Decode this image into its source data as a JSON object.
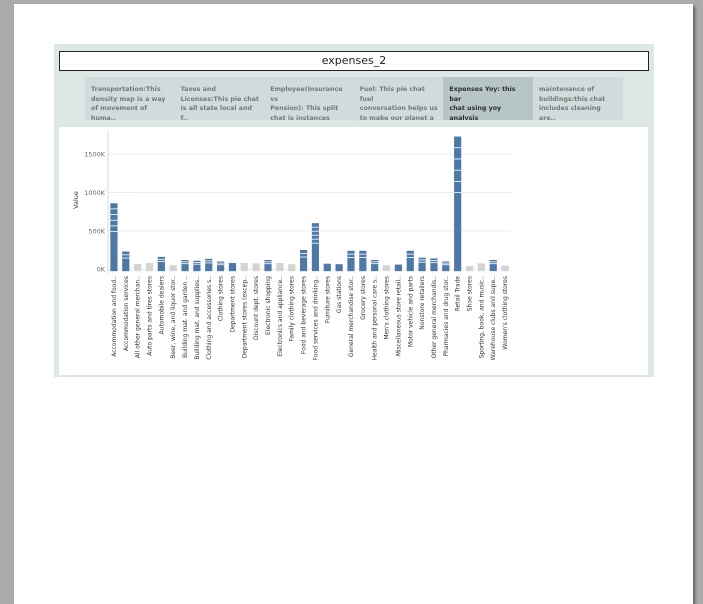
{
  "page": {
    "background": "#ababab",
    "paper_color": "#ffffff",
    "dashboard_color": "#dde8e6"
  },
  "dashboard": {
    "title": "expenses_2",
    "story_points": [
      {
        "label": "Transportation:This\ndensity map is  a way\nof movement of huma..",
        "active": false
      },
      {
        "label": "Taxes and\nLicenses:This pie chat\nis all state local and f..",
        "active": false
      },
      {
        "label": "Employee(Insurance vs\nPension): This split\nchat is instances whe..",
        "active": false
      },
      {
        "label": "Fuel: This pie chat fuel\nconversation helps us\nto make our planet a ..",
        "active": false
      },
      {
        "label": "Expenses Yoy: this bar\nchat using yoy analysis\nfinance professionals ..",
        "active": true
      },
      {
        "label": "maintenance of\nbuildings:this chat\nincludes  cleaning are..",
        "active": false
      }
    ]
  },
  "chart_data": {
    "type": "bar",
    "ylabel": "Value",
    "xlabel": "",
    "ylim": [
      -50,
      1750
    ],
    "yticks": [
      0,
      500,
      1000,
      1500
    ],
    "ytick_labels": [
      "0K",
      "500K",
      "1000K",
      "1500K"
    ],
    "grid": true,
    "colors": {
      "primary": "#4e79a7",
      "secondary": "#d3d3d3",
      "separator": "#ffffff"
    },
    "categories": [
      "Accommodation and food..",
      "Accommodation services",
      "All other general merchan..",
      "Auto parts and tires stores",
      "Automobile dealers",
      "Beer, wine, and liquor stor..",
      "Building mat. and garden ..",
      "Building mat. and supplies..",
      "Clothing and accessories s..",
      "Clothing stores",
      "Department stores",
      "Department stores (excep..",
      "Discount dept. stores",
      "Electronic shopping",
      "Electronics and appliance..",
      "Family clothing stores",
      "Food and beverage stores",
      "Food services and drinking..",
      "Furniture stores",
      "Gas stations",
      "General merchandise stor..",
      "Grocery stores",
      "Health and personal care s..",
      "Men's clothing stores",
      "Miscellaneous store retail..",
      "Motor vehicle and parts",
      "Nonstore retailers",
      "Other general merchandis..",
      "Pharmacies and drug stor..",
      "Retail Trade",
      "Shoe stores",
      "Sporting, book, and music..",
      "Warehouse clubs and supe..",
      "Women's clothing stores"
    ],
    "values": [
      860,
      230,
      40,
      55,
      160,
      25,
      120,
      110,
      135,
      100,
      80,
      55,
      50,
      120,
      55,
      65,
      250,
      600,
      45,
      65,
      240,
      240,
      120,
      25,
      60,
      240,
      150,
      140,
      100,
      1730,
      15,
      50,
      120,
      20
    ],
    "highlighted": [
      true,
      true,
      false,
      false,
      true,
      false,
      true,
      true,
      true,
      true,
      true,
      false,
      false,
      true,
      false,
      false,
      true,
      true,
      true,
      true,
      true,
      true,
      true,
      false,
      true,
      true,
      true,
      true,
      true,
      true,
      false,
      false,
      true,
      false
    ]
  }
}
